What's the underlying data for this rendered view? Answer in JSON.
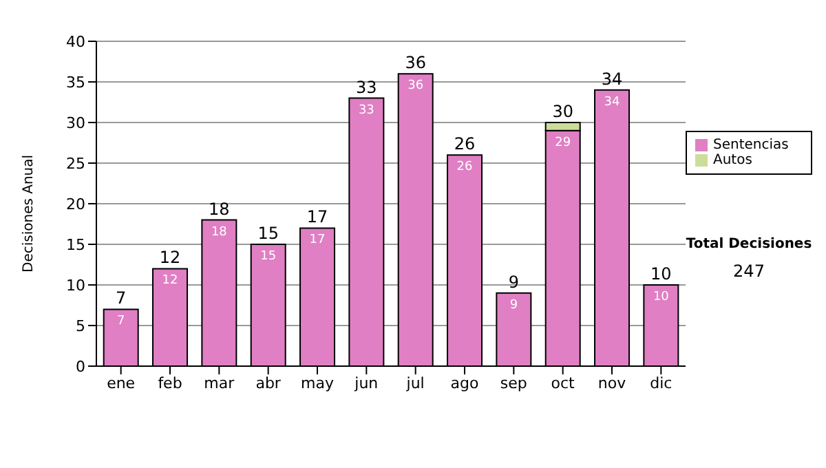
{
  "chart_data": {
    "type": "bar",
    "ylabel": "Decisiones Anual",
    "categories": [
      "ene",
      "feb",
      "mar",
      "abr",
      "may",
      "jun",
      "jul",
      "ago",
      "sep",
      "oct",
      "nov",
      "dic"
    ],
    "series": [
      {
        "name": "Sentencias",
        "color": "#e07fc4",
        "values": [
          7,
          12,
          18,
          15,
          17,
          33,
          36,
          26,
          9,
          29,
          34,
          10
        ],
        "value_labels": [
          "7",
          "12",
          "18",
          "15",
          "17",
          "33",
          "36",
          "26",
          "9",
          "29",
          "34",
          "10"
        ]
      },
      {
        "name": "Autos",
        "color": "#ccdd99",
        "values": [
          null,
          null,
          null,
          null,
          null,
          null,
          null,
          null,
          null,
          1,
          null,
          null
        ]
      }
    ],
    "stacked": true,
    "totals": [
      "7",
      "12",
      "18",
      "15",
      "17",
      "33",
      "36",
      "26",
      "9",
      "30",
      "34",
      "10"
    ],
    "ylim": [
      0,
      40
    ],
    "yticks": [
      0,
      5,
      10,
      15,
      20,
      25,
      30,
      35,
      40
    ],
    "grid": "y",
    "legend": "right",
    "annotations": [
      "Total Decisiones",
      "247"
    ]
  }
}
